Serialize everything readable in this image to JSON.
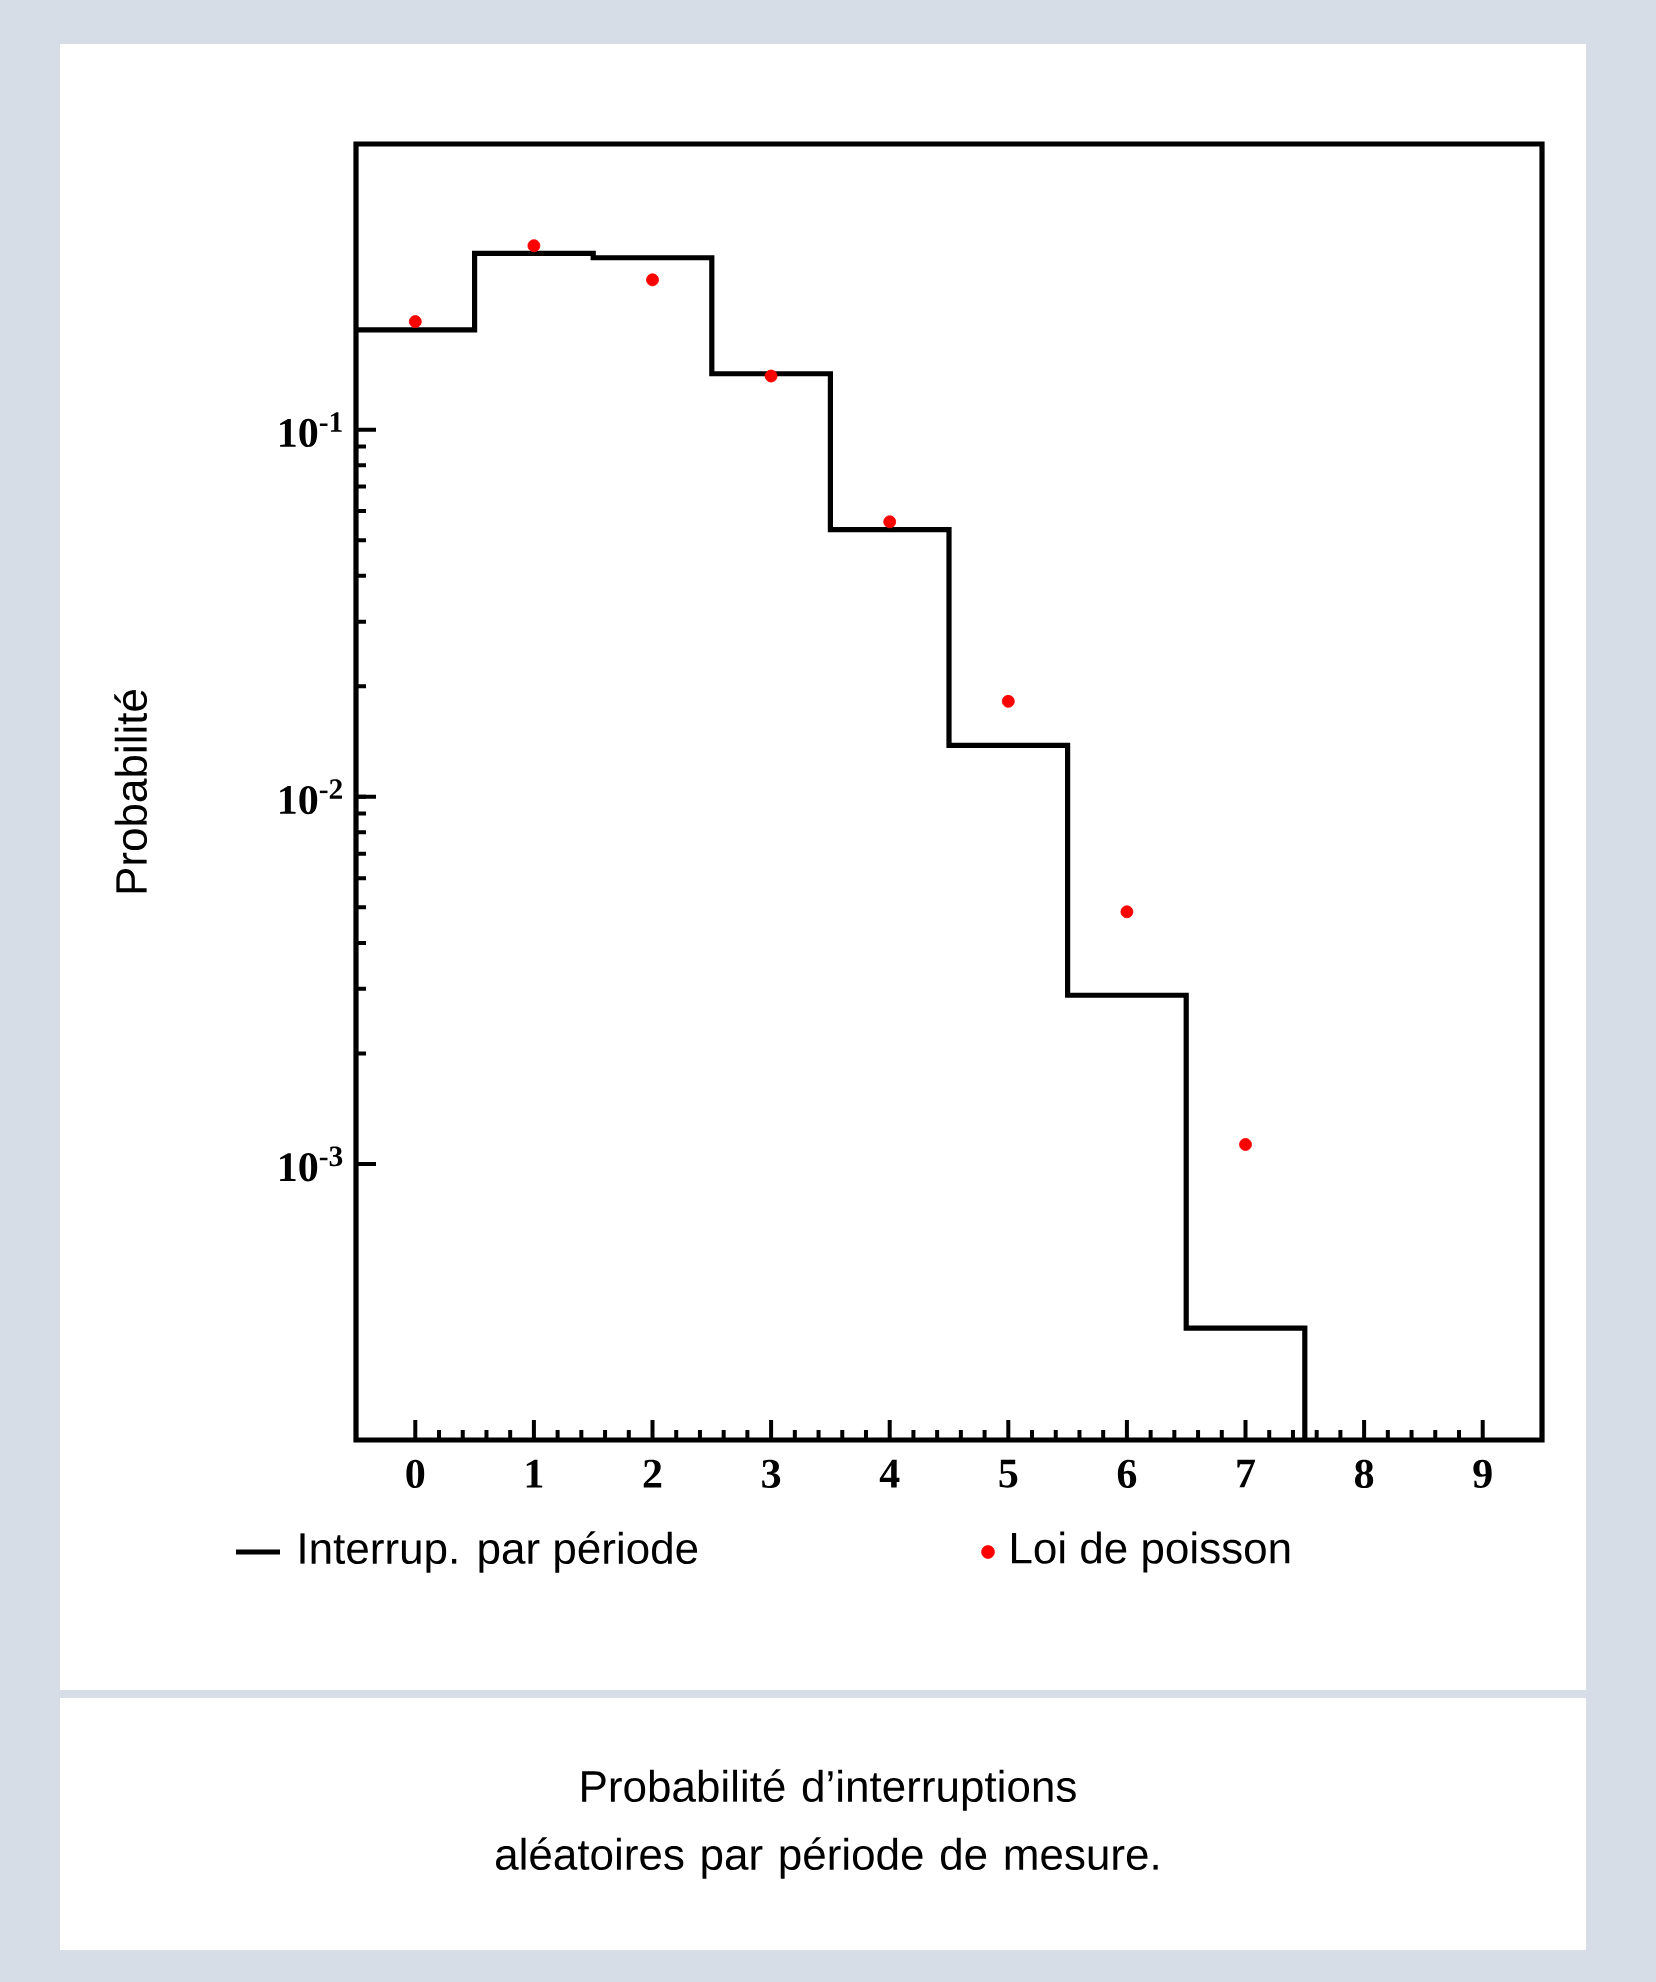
{
  "chart_data": {
    "type": "histogram",
    "ylabel": "Probabilité",
    "bins": [
      -0.5,
      0.5,
      1.5,
      2.5,
      3.5,
      4.5,
      5.5,
      6.5,
      7.5
    ],
    "series": [
      {
        "name": "Interrup. par période",
        "color": "#000000",
        "values": [
          0.187,
          0.302,
          0.294,
          0.142,
          0.0534,
          0.0138,
          0.00288,
          0.000357
        ]
      },
      {
        "name": "Loi de poisson",
        "type": "scatter",
        "color": "#ff0000",
        "x": [
          0,
          1,
          2,
          3,
          4,
          5,
          6,
          7
        ],
        "values": [
          0.197,
          0.317,
          0.256,
          0.14,
          0.0561,
          0.0182,
          0.00486,
          0.00113
        ]
      }
    ],
    "xlim": [
      -0.5,
      9.5
    ],
    "xticks": [
      0,
      1,
      2,
      3,
      4,
      5,
      6,
      7,
      8,
      9
    ],
    "ylim": [
      0.000177,
      0.6
    ],
    "yticks": [
      {
        "value": 0.001,
        "label": "10$^{-3}$"
      },
      {
        "value": 0.01,
        "label": "10$^{-2}$"
      },
      {
        "value": 0.1,
        "label": "10$^{-1}$"
      }
    ],
    "log": "y",
    "grid": false,
    "marker": "circle",
    "legend": "bottom",
    "annotations": [
      "Probabilité d’interruptions aléatoires par période de mesure."
    ]
  }
}
